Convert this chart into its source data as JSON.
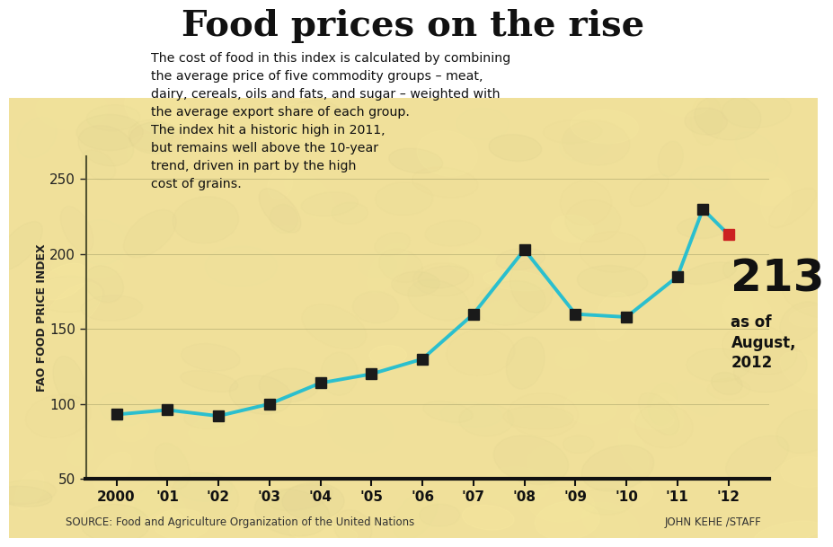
{
  "title": "Food prices on the rise",
  "subtitle_lines": [
    "The cost of food in this index is calculated by combining",
    "the average price of five commodity groups – meat,",
    "dairy, cereals, oils and fats, and sugar – weighted with",
    "the average export share of each group.",
    "The index hit a historic high in 2011,",
    "but remains well above the 10-year",
    "trend, driven in part by the high",
    "cost of grains."
  ],
  "x_data": [
    2000,
    2001,
    2002,
    2003,
    2004,
    2005,
    2006,
    2007,
    2008,
    2009,
    2010,
    2011
  ],
  "y_data": [
    93,
    96,
    92,
    100,
    114,
    120,
    130,
    160,
    203,
    160,
    158,
    185
  ],
  "peak_x": 2011.5,
  "peak_y": 230,
  "last_x": 2012,
  "last_y": 213,
  "line_color": "#2bbfce",
  "marker_color": "#1a1a1a",
  "peak_marker_color": "#1a1a1a",
  "last_marker_color": "#cc2222",
  "ylabel": "FAO FOOD PRICE INDEX",
  "ylim": [
    50,
    265
  ],
  "xlim": [
    1999.4,
    2012.8
  ],
  "yticks": [
    50,
    100,
    150,
    200,
    250
  ],
  "xtick_labels": [
    "2000",
    "'01",
    "'02",
    "'03",
    "'04",
    "'05",
    "'06",
    "'07",
    "'08",
    "'09",
    "'10",
    "'11",
    "'12"
  ],
  "source_text": "SOURCE: Food and Agriculture Organization of the United Nations",
  "credit_text": "JOHN KEHE /STAFF",
  "bg_light": "#f5edcc",
  "bg_mid": "#e8d48a",
  "annotation_value": "213",
  "annotation_sub1": "as of",
  "annotation_sub2": "August,",
  "annotation_sub3": "2012"
}
